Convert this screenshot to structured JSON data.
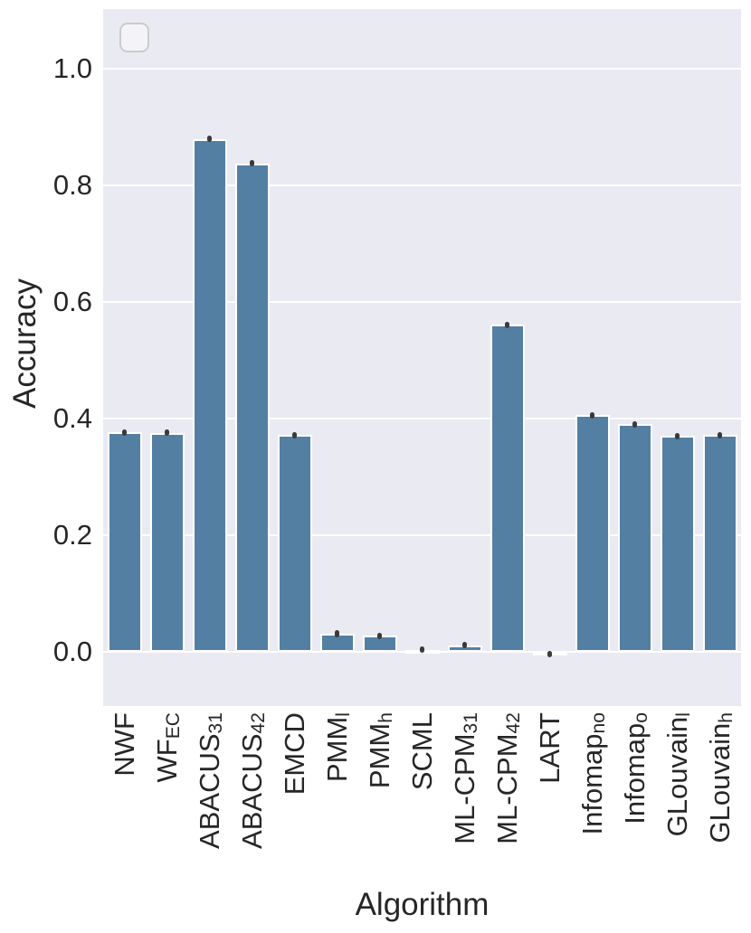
{
  "figure": {
    "background": "#FFFFFF"
  },
  "chart_data": {
    "type": "bar",
    "title": "",
    "xlabel": "Algorithm",
    "ylabel": "Accuracy",
    "ylim": [
      -0.093,
      1.103
    ],
    "yticks": [
      0.0,
      0.2,
      0.4,
      0.6,
      0.8,
      1.0
    ],
    "ytick_labels": [
      "0.0",
      "0.2",
      "0.4",
      "0.6",
      "0.8",
      "1.0"
    ],
    "grid": "horizontal-white-gridlines",
    "legend": {
      "visible": true,
      "entries": [],
      "position": "upper-left",
      "note": "empty rounded legend box"
    },
    "categories": [
      {
        "main": "NWF",
        "sub": ""
      },
      {
        "main": "WF",
        "sub": "EC"
      },
      {
        "main": "ABACUS",
        "sub": "31"
      },
      {
        "main": "ABACUS",
        "sub": "42"
      },
      {
        "main": "EMCD",
        "sub": ""
      },
      {
        "main": "PMM",
        "sub": "l"
      },
      {
        "main": "PMM",
        "sub": "h"
      },
      {
        "main": "SCML",
        "sub": ""
      },
      {
        "main": "ML-CPM",
        "sub": "31"
      },
      {
        "main": "ML-CPM",
        "sub": "42"
      },
      {
        "main": "LART",
        "sub": ""
      },
      {
        "main": "Infomap",
        "sub": "no"
      },
      {
        "main": "Infomap",
        "sub": "o"
      },
      {
        "main": "GLouvain",
        "sub": "l"
      },
      {
        "main": "GLouvain",
        "sub": "h"
      }
    ],
    "values": [
      0.377,
      0.376,
      0.88,
      0.838,
      0.372,
      0.031,
      0.028,
      0.004,
      0.012,
      0.561,
      -0.004,
      0.406,
      0.391,
      0.371,
      0.372
    ],
    "errors": [
      0.004,
      0.004,
      0.003,
      0.003,
      0.004,
      0.006,
      0.005,
      0.004,
      0.004,
      0.003,
      0.004,
      0.004,
      0.004,
      0.004,
      0.005
    ],
    "colors": {
      "bar": "#537FA3",
      "plot_background": "#EAEAF2",
      "gridline": "#FFFFFF",
      "error_bar": "#3A3A3A",
      "text": "#262626",
      "legend_border": "#CCCCCC",
      "figure_background": "#FFFFFF"
    }
  }
}
